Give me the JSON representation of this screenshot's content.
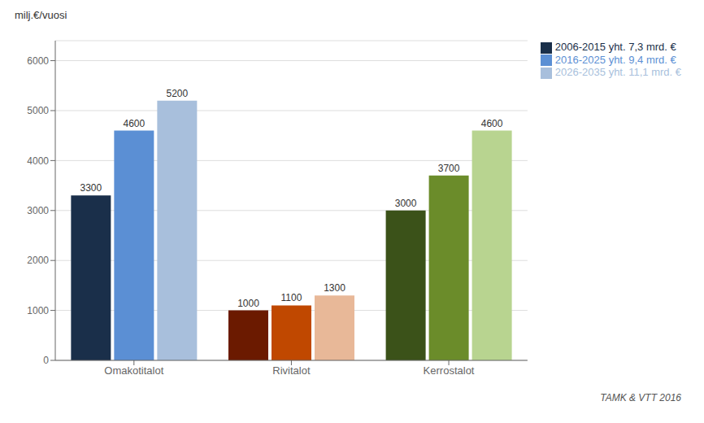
{
  "chart_data": {
    "type": "bar",
    "categories": [
      "Omakotitalot",
      "Rivitalot",
      "Kerrostalot"
    ],
    "series": [
      {
        "name": "2006-2015 yht. 7,3 mrd. €",
        "color": "#1a2f4a",
        "colors": [
          "#1a2f4a",
          "#6b1a00",
          "#3b5219"
        ],
        "values": [
          3300,
          1000,
          3000
        ]
      },
      {
        "name": "2016-2025 yht. 9,4 mrd. €",
        "color": "#5b8fd4",
        "colors": [
          "#5b8fd4",
          "#c04800",
          "#6b8c2a"
        ],
        "values": [
          4600,
          1100,
          3700
        ]
      },
      {
        "name": "2026-2035 yht. 11,1 mrd. €",
        "color": "#a8bfdc",
        "colors": [
          "#a8bfdc",
          "#e8b898",
          "#b8d490"
        ],
        "values": [
          5200,
          1300,
          4600
        ]
      }
    ],
    "ylabel": "milj.€/vuosi",
    "ylim": [
      0,
      6400
    ],
    "yticks": [
      0,
      1000,
      2000,
      3000,
      4000,
      5000,
      6000
    ],
    "grid": true,
    "legend": "upper right",
    "data_labels": true,
    "annotations": [
      "TAMK & VTT 2016"
    ]
  }
}
